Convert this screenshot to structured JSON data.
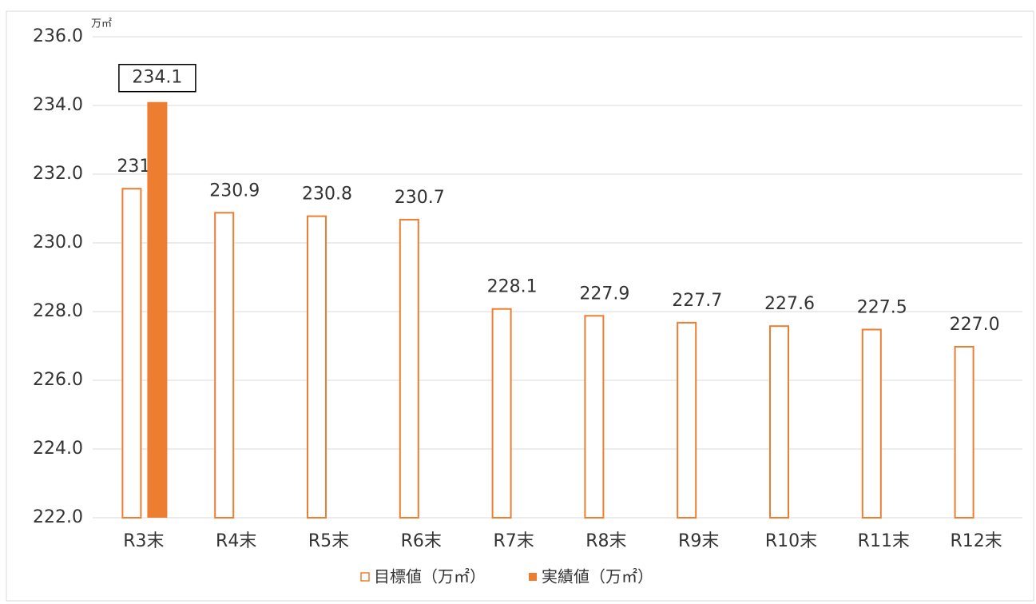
{
  "chart_data": {
    "type": "bar",
    "unit_label": "万㎡",
    "categories": [
      "R3末",
      "R4末",
      "R5末",
      "R6末",
      "R7末",
      "R8末",
      "R9末",
      "R10末",
      "R11末",
      "R12末"
    ],
    "series": [
      {
        "name": "目標値（万㎡）",
        "color": "#ed7d31",
        "filled": false,
        "values": [
          231.6,
          230.9,
          230.8,
          230.7,
          228.1,
          227.9,
          227.7,
          227.6,
          227.5,
          227.0
        ],
        "value_labels": [
          "231.6",
          "230.9",
          "230.8",
          "230.7",
          "228.1",
          "227.9",
          "227.7",
          "227.6",
          "227.5",
          "227.0"
        ]
      },
      {
        "name": "実績値（万㎡）",
        "color": "#ed7d31",
        "filled": true,
        "values": [
          234.1,
          null,
          null,
          null,
          null,
          null,
          null,
          null,
          null,
          null
        ],
        "value_labels": [
          "234.1",
          null,
          null,
          null,
          null,
          null,
          null,
          null,
          null,
          null
        ]
      }
    ],
    "ylim": [
      222,
      236
    ],
    "yticks": [
      {
        "value": 222,
        "label": "222.0"
      },
      {
        "value": 224,
        "label": "224.0"
      },
      {
        "value": 226,
        "label": "226.0"
      },
      {
        "value": 228,
        "label": "228.0"
      },
      {
        "value": 230,
        "label": "230.0"
      },
      {
        "value": 232,
        "label": "232.0"
      },
      {
        "value": 234,
        "label": "234.0"
      },
      {
        "value": 236,
        "label": "236.0"
      }
    ],
    "grid": true,
    "legend": "bottom"
  }
}
